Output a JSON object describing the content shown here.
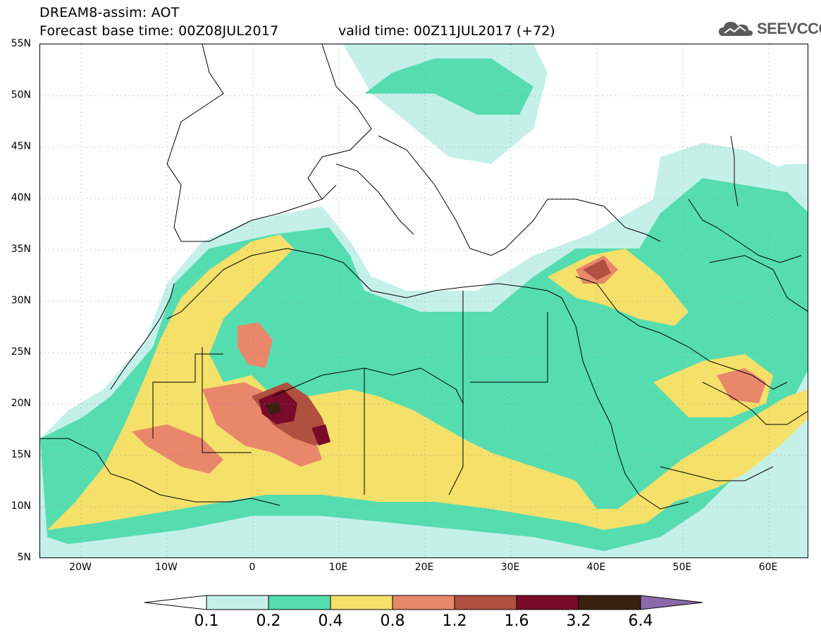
{
  "header": {
    "title_line1": "DREAM8-assim: AOT",
    "title_line2": "Forecast base time: 00Z08JUL2017",
    "valid_time": "valid time: 00Z11JUL2017 (+72)",
    "logo_text": "SEEVCCC"
  },
  "map": {
    "y_axis_labels": [
      "55N",
      "50N",
      "45N",
      "40N",
      "35N",
      "30N",
      "25N",
      "20N",
      "15N",
      "10N",
      "5N"
    ],
    "x_axis_labels": [
      "20W",
      "10W",
      "0",
      "10E",
      "20E",
      "30E",
      "40E",
      "50E",
      "60E"
    ],
    "colors": {
      "level_0_1": "#c5f0e8",
      "level_0_2": "#55ddb0",
      "level_0_4": "#f5e06a",
      "level_0_8": "#e8876a",
      "level_1_2": "#b05040",
      "level_1_6": "#7a0a2a",
      "level_3_2": "#3a2010",
      "level_6_4": "#8a6aaa"
    }
  },
  "colorbar": {
    "labels": [
      "0.1",
      "0.2",
      "0.4",
      "0.8",
      "1.2",
      "1.6",
      "3.2",
      "6.4"
    ]
  }
}
